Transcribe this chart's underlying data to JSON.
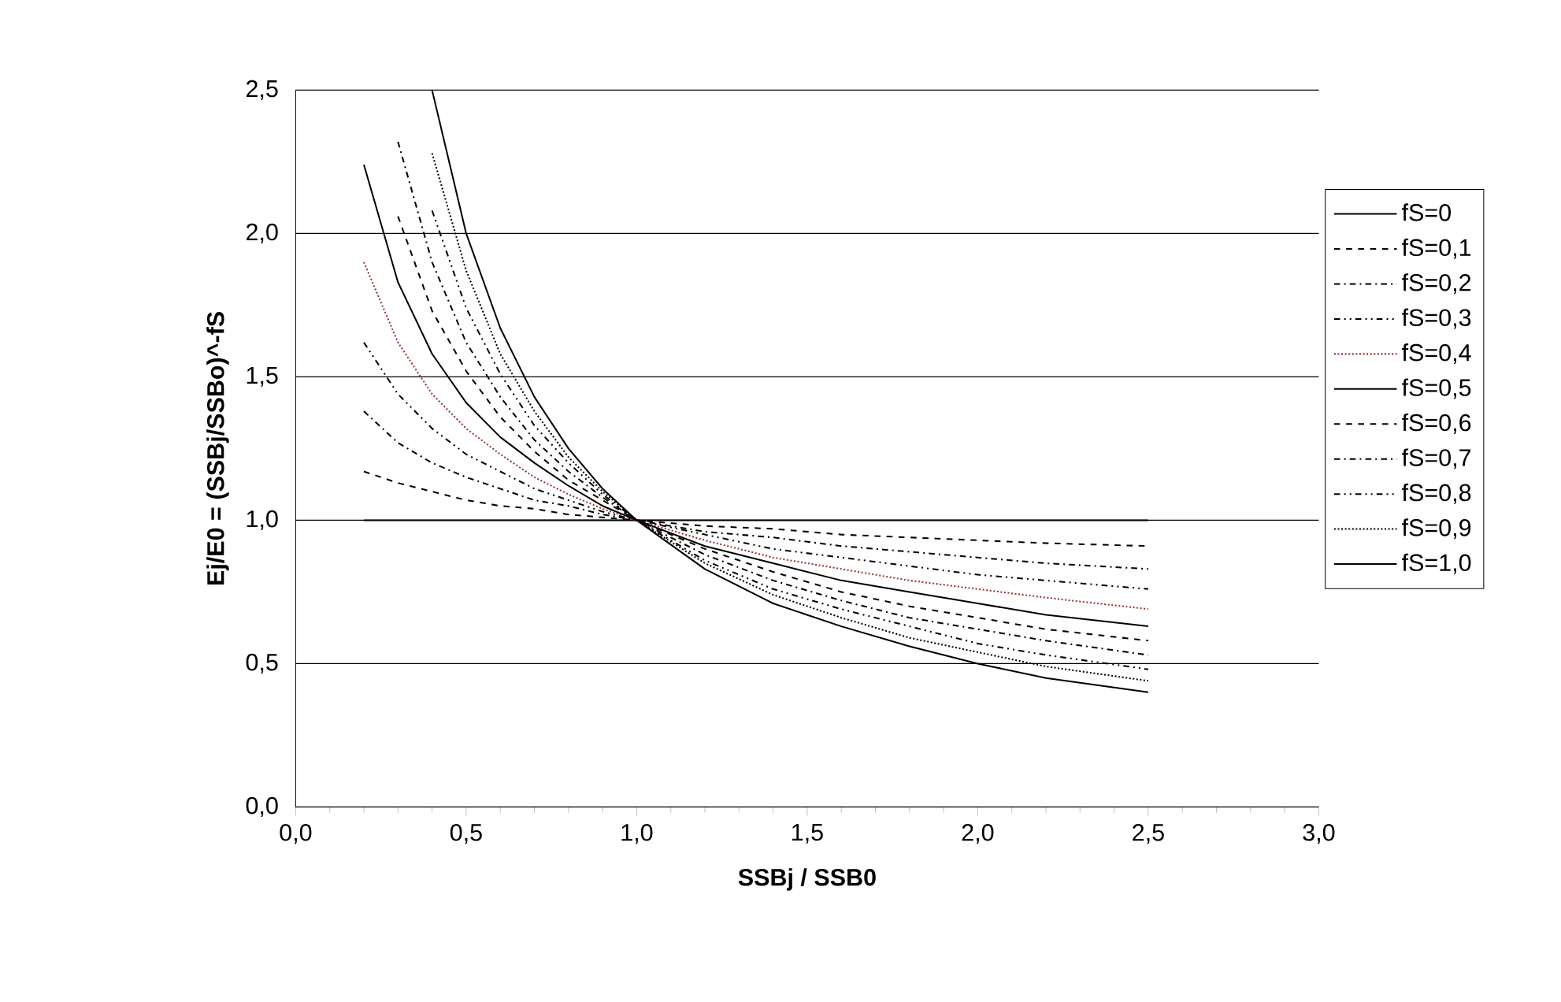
{
  "chart_data": {
    "type": "line",
    "xlabel": "SSBj / SSB0",
    "ylabel": "Ej/E0 = (SSBj/SSBo)^-fS",
    "x": [
      0.2,
      0.3,
      0.4,
      0.5,
      0.6,
      0.7,
      0.8,
      0.9,
      1.0,
      1.2,
      1.4,
      1.6,
      1.8,
      2.0,
      2.2,
      2.5
    ],
    "xlim": [
      0,
      3
    ],
    "xticks": [
      {
        "value": 0,
        "label": "0,0"
      },
      {
        "value": 0.5,
        "label": "0,5"
      },
      {
        "value": 1,
        "label": "1,0"
      },
      {
        "value": 1.5,
        "label": "1,5"
      },
      {
        "value": 2,
        "label": "2,0"
      },
      {
        "value": 2.5,
        "label": "2,5"
      },
      {
        "value": 3,
        "label": "3,0"
      }
    ],
    "ylim": [
      0,
      2.5
    ],
    "yticks": [
      {
        "value": 0,
        "label": "0,0"
      },
      {
        "value": 0.5,
        "label": "0,5"
      },
      {
        "value": 1,
        "label": "1,0"
      },
      {
        "value": 1.5,
        "label": "1,5"
      },
      {
        "value": 2,
        "label": "2,0"
      },
      {
        "value": 2.5,
        "label": "2,5"
      }
    ],
    "grid": "y",
    "legend": "right",
    "marker": "none",
    "series": [
      {
        "name": "fS=0",
        "color": "#000000",
        "line_style": "solid",
        "values": [
          1,
          1,
          1,
          1,
          1,
          1,
          1,
          1,
          1,
          1,
          1,
          1,
          1,
          1,
          1,
          1
        ]
      },
      {
        "name": "fS=0,1",
        "color": "#000000",
        "line_style": "dashed",
        "values": [
          1.17,
          1.13,
          1.1,
          1.07,
          1.05,
          1.04,
          1.02,
          1.01,
          1,
          0.98,
          0.97,
          0.95,
          0.94,
          0.93,
          0.92,
          0.91
        ]
      },
      {
        "name": "fS=0,2",
        "color": "#000000",
        "line_style": "dashdotted",
        "values": [
          1.38,
          1.27,
          1.2,
          1.15,
          1.11,
          1.07,
          1.05,
          1.02,
          1,
          0.96,
          0.94,
          0.91,
          0.89,
          0.87,
          0.85,
          0.83
        ]
      },
      {
        "name": "fS=0,3",
        "color": "#000000",
        "line_style": "dashdotdotted",
        "values": [
          1.62,
          1.44,
          1.32,
          1.23,
          1.17,
          1.11,
          1.07,
          1.03,
          1,
          0.95,
          0.9,
          0.87,
          0.84,
          0.81,
          0.79,
          0.76
        ]
      },
      {
        "name": "fS=0,4",
        "color": "#993333",
        "line_style": "dotted",
        "values": [
          1.9,
          1.62,
          1.44,
          1.32,
          1.23,
          1.15,
          1.09,
          1.04,
          1,
          0.93,
          0.87,
          0.83,
          0.79,
          0.76,
          0.73,
          0.69
        ]
      },
      {
        "name": "fS=0,5",
        "color": "#000000",
        "line_style": "solid",
        "values": [
          2.24,
          1.83,
          1.58,
          1.41,
          1.29,
          1.2,
          1.12,
          1.05,
          1,
          0.91,
          0.85,
          0.79,
          0.75,
          0.71,
          0.67,
          0.63
        ]
      },
      {
        "name": "fS=0,6",
        "color": "#000000",
        "line_style": "dashed",
        "values": [
          null,
          2.06,
          1.73,
          1.52,
          1.36,
          1.24,
          1.14,
          1.07,
          1,
          0.9,
          0.82,
          0.75,
          0.7,
          0.66,
          0.62,
          0.58
        ]
      },
      {
        "name": "fS=0,7",
        "color": "#000000",
        "line_style": "dashdotted",
        "values": [
          null,
          2.32,
          1.9,
          1.62,
          1.43,
          1.28,
          1.17,
          1.08,
          1,
          0.88,
          0.79,
          0.72,
          0.66,
          0.62,
          0.58,
          0.53
        ]
      },
      {
        "name": "fS=0,8",
        "color": "#000000",
        "line_style": "dashdotdotted",
        "values": [
          null,
          null,
          2.08,
          1.74,
          1.51,
          1.33,
          1.2,
          1.09,
          1,
          0.86,
          0.76,
          0.69,
          0.63,
          0.57,
          0.53,
          0.48
        ]
      },
      {
        "name": "fS=0,9",
        "color": "#000000",
        "line_style": "dotted",
        "values": [
          null,
          null,
          2.28,
          1.87,
          1.58,
          1.38,
          1.22,
          1.1,
          1,
          0.85,
          0.74,
          0.66,
          0.59,
          0.54,
          0.49,
          0.44
        ]
      },
      {
        "name": "fS=1,0",
        "color": "#000000",
        "line_style": "solid",
        "values": [
          null,
          null,
          2.5,
          2.0,
          1.67,
          1.43,
          1.25,
          1.11,
          1,
          0.83,
          0.71,
          0.63,
          0.56,
          0.5,
          0.45,
          0.4
        ]
      }
    ]
  }
}
